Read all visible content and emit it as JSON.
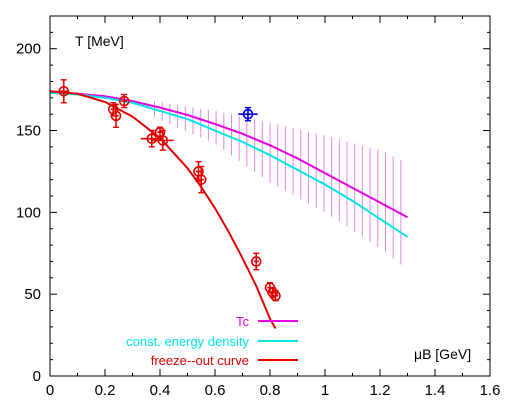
{
  "chart_data": {
    "type": "line",
    "title": "",
    "xlabel": "μB [GeV]",
    "ylabel": "T [MeV]",
    "xlim": [
      0,
      1.6
    ],
    "ylim": [
      0,
      220
    ],
    "x_ticks": [
      "0",
      "0.2",
      "0.4",
      "0.6",
      "0.8",
      "1",
      "1.2",
      "1.4",
      "1.6"
    ],
    "y_ticks": [
      "0",
      "50",
      "100",
      "150",
      "200"
    ],
    "grid": false,
    "legend_position": "bottom-left",
    "series": [
      {
        "name": "Tc",
        "kind": "line",
        "color": "#e600e6",
        "x": [
          0,
          0.1,
          0.2,
          0.3,
          0.4,
          0.5,
          0.6,
          0.7,
          0.8,
          0.9,
          1.0,
          1.1,
          1.2,
          1.3
        ],
        "y": [
          173,
          172.5,
          171,
          168,
          164,
          159.5,
          154,
          148,
          141,
          133,
          124,
          115,
          106,
          97
        ]
      },
      {
        "name": "const. energy density",
        "kind": "line",
        "color": "#00e6e6",
        "x": [
          0,
          0.1,
          0.2,
          0.3,
          0.4,
          0.5,
          0.6,
          0.7,
          0.8,
          0.9,
          1.0,
          1.1,
          1.2,
          1.3
        ],
        "y": [
          173,
          172,
          170,
          167,
          162,
          157,
          150,
          143,
          135,
          126,
          117,
          107,
          96,
          85
        ]
      },
      {
        "name": "freeze--out curve",
        "kind": "line",
        "color": "#e60000",
        "x": [
          0,
          0.1,
          0.2,
          0.3,
          0.4,
          0.5,
          0.55,
          0.6,
          0.65,
          0.7,
          0.75,
          0.8,
          0.82
        ],
        "y": [
          174,
          172.5,
          167.5,
          158.5,
          145.5,
          127,
          115.5,
          102.5,
          88,
          72,
          55,
          35,
          29
        ]
      },
      {
        "name": "",
        "kind": "errorbars",
        "color": "#e60000",
        "points": [
          {
            "x": 0.05,
            "y": 174,
            "yerr": 7,
            "xerr": 0.02
          },
          {
            "x": 0.23,
            "y": 163,
            "yerr": 4,
            "xerr": 0.01
          },
          {
            "x": 0.24,
            "y": 159,
            "yerr": 7,
            "xerr": 0.01
          },
          {
            "x": 0.27,
            "y": 168,
            "yerr": 4,
            "xerr": 0.01
          },
          {
            "x": 0.37,
            "y": 145,
            "yerr": 5,
            "xerr": 0.04
          },
          {
            "x": 0.4,
            "y": 149,
            "yerr": 3,
            "xerr": 0.01
          },
          {
            "x": 0.41,
            "y": 144,
            "yerr": 6,
            "xerr": 0.04
          },
          {
            "x": 0.54,
            "y": 125,
            "yerr": 6,
            "xerr": 0.01
          },
          {
            "x": 0.55,
            "y": 120,
            "yerr": 8,
            "xerr": 0.01
          },
          {
            "x": 0.75,
            "y": 70,
            "yerr": 5,
            "xerr": 0.01
          },
          {
            "x": 0.8,
            "y": 54,
            "yerr": 3,
            "xerr": 0.01
          },
          {
            "x": 0.81,
            "y": 51,
            "yerr": 3,
            "xerr": 0.01
          },
          {
            "x": 0.82,
            "y": 49,
            "yerr": 3,
            "xerr": 0.01
          }
        ]
      },
      {
        "name": "",
        "kind": "errorbars",
        "color": "#0000e6",
        "points": [
          {
            "x": 0.72,
            "y": 160,
            "yerr": 4,
            "xerr": 0.035
          }
        ]
      }
    ],
    "uncertainty_bars": {
      "color": "#e66ae6",
      "x_start": 0.38,
      "x_end": 1.3,
      "step": 0.028,
      "upper": [
        [
          0.38,
          168
        ],
        [
          0.6,
          162
        ],
        [
          0.8,
          155
        ],
        [
          1.0,
          147
        ],
        [
          1.2,
          138
        ],
        [
          1.3,
          130
        ]
      ],
      "lower": [
        [
          0.38,
          158
        ],
        [
          0.6,
          142
        ],
        [
          0.8,
          118
        ],
        [
          1.0,
          100
        ],
        [
          1.2,
          78
        ],
        [
          1.3,
          65
        ]
      ]
    }
  }
}
